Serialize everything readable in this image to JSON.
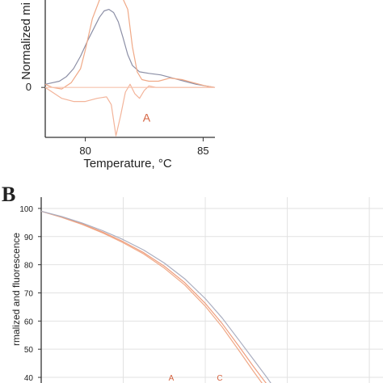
{
  "chart_data": [
    {
      "panel": "A",
      "type": "line",
      "xlabel": "Temperature, °C",
      "ylabel": "Normalized mi",
      "xlim": [
        78.3,
        85.5
      ],
      "ylim": [
        -1.6,
        2.8
      ],
      "xticks": [
        "80",
        "85"
      ],
      "yticks": [
        "0"
      ],
      "annotations": [
        {
          "text": "A",
          "x": 82.6,
          "y": -1.1,
          "color": "#d4613e"
        }
      ],
      "series": [
        {
          "color": "#8c8fa6",
          "x": [
            78.3,
            78.6,
            78.9,
            79.2,
            79.5,
            79.8,
            80.1,
            80.4,
            80.6,
            80.8,
            81.0,
            81.2,
            81.4,
            81.6,
            81.8,
            82.0,
            82.3,
            82.7,
            83.2,
            83.7,
            84.2,
            84.7,
            85.1,
            85.5
          ],
          "y": [
            0.1,
            0.15,
            0.2,
            0.35,
            0.6,
            1.0,
            1.5,
            1.95,
            2.25,
            2.45,
            2.5,
            2.4,
            2.1,
            1.6,
            1.05,
            0.7,
            0.5,
            0.45,
            0.4,
            0.3,
            0.2,
            0.1,
            0.05,
            0.0
          ]
        },
        {
          "color": "#f0a987",
          "x": [
            78.3,
            78.6,
            79.0,
            79.4,
            79.8,
            80.0,
            80.3,
            80.6,
            80.9,
            81.2,
            81.5,
            81.8,
            82.0,
            82.2,
            82.4,
            82.7,
            83.1,
            83.6,
            84.1,
            84.6,
            85.1,
            85.5
          ],
          "y": [
            0.1,
            0.0,
            -0.05,
            0.15,
            0.6,
            1.2,
            2.2,
            2.8,
            3.0,
            3.0,
            3.0,
            2.5,
            1.3,
            0.5,
            0.25,
            0.2,
            0.2,
            0.3,
            0.25,
            0.15,
            0.05,
            0.0
          ]
        },
        {
          "color": "#f3b49a",
          "x": [
            78.3,
            78.6,
            79.0,
            79.5,
            80.0,
            80.5,
            80.9,
            81.1,
            81.3,
            81.5,
            81.7,
            81.9,
            82.1,
            82.3,
            82.5,
            82.7,
            83.0,
            83.5,
            84.0,
            84.5,
            85.0,
            85.5
          ],
          "y": [
            0.0,
            -0.15,
            -0.35,
            -0.45,
            -0.45,
            -0.35,
            -0.3,
            -0.55,
            -1.55,
            -0.9,
            -0.15,
            0.1,
            -0.2,
            -0.35,
            -0.1,
            0.05,
            0.0,
            0.0,
            0.0,
            0.0,
            0.0,
            0.0
          ]
        },
        {
          "color": "#f6c3ae",
          "x": [
            78.3,
            79.0,
            80.0,
            81.0,
            82.0,
            83.0,
            84.0,
            85.0,
            85.5
          ],
          "y": [
            0.0,
            0.0,
            0.0,
            0.0,
            0.0,
            0.0,
            0.0,
            0.0,
            0.0
          ]
        }
      ]
    },
    {
      "panel": "B",
      "type": "line",
      "ylabel": "rmalized and fluorescence",
      "ylim": [
        38,
        104
      ],
      "yticks": [
        "100",
        "90",
        "80",
        "70",
        "60",
        "50",
        "40"
      ],
      "grid": true,
      "annotations": [
        {
          "text": "A",
          "color": "#d4613e"
        },
        {
          "text": "C",
          "color": "#d4613e"
        }
      ],
      "series": [
        {
          "color": "#f0a987",
          "x": [
            0.0,
            0.06,
            0.12,
            0.18,
            0.24,
            0.3,
            0.36,
            0.42,
            0.48,
            0.53,
            0.58,
            0.62,
            0.65,
            0.68
          ],
          "y": [
            99,
            96.8,
            94.3,
            91.3,
            87.8,
            83.8,
            78.8,
            72.8,
            65.3,
            57.8,
            49.3,
            42.3,
            37.3,
            32
          ]
        },
        {
          "color": "#ef9f7f",
          "x": [
            0.0,
            0.06,
            0.12,
            0.18,
            0.24,
            0.3,
            0.36,
            0.42,
            0.48,
            0.53,
            0.58,
            0.62,
            0.65,
            0.69
          ],
          "y": [
            99,
            96.9,
            94.5,
            91.6,
            88.2,
            84.3,
            79.5,
            73.6,
            66.3,
            59,
            50.8,
            44,
            39.2,
            33
          ]
        },
        {
          "color": "#aaaec0",
          "x": [
            0.0,
            0.06,
            0.12,
            0.18,
            0.24,
            0.3,
            0.36,
            0.42,
            0.48,
            0.53,
            0.58,
            0.62,
            0.66,
            0.7
          ],
          "y": [
            99,
            97.1,
            94.8,
            92.1,
            88.9,
            85.2,
            80.6,
            75,
            68,
            61,
            53,
            46.5,
            40,
            33
          ]
        }
      ]
    }
  ],
  "panel_labels": {
    "b": "B"
  }
}
